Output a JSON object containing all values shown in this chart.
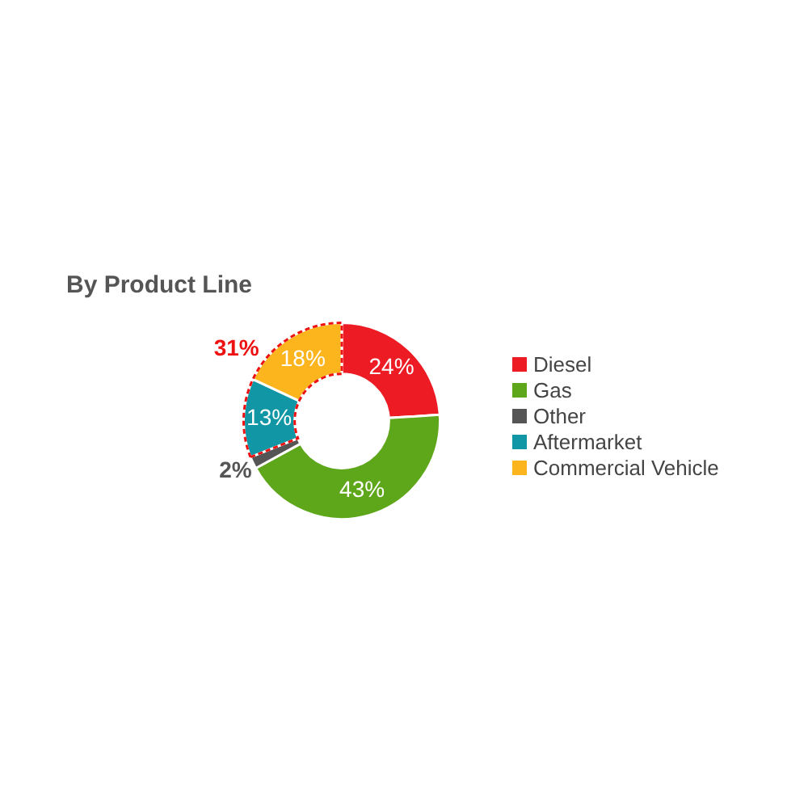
{
  "chart_data": {
    "type": "donut",
    "title": "By Product Line",
    "categories": [
      "Diesel",
      "Gas",
      "Other",
      "Aftermarket",
      "Commercial Vehicle"
    ],
    "values": [
      24,
      43,
      2,
      13,
      18
    ],
    "colors": [
      "#ed1c24",
      "#5ea61a",
      "#555555",
      "#1096a4",
      "#fdb51e"
    ],
    "value_labels": [
      "24%",
      "43%",
      "2%",
      "13%",
      "18%"
    ],
    "annotations": [
      "31%"
    ],
    "legend": "right"
  }
}
